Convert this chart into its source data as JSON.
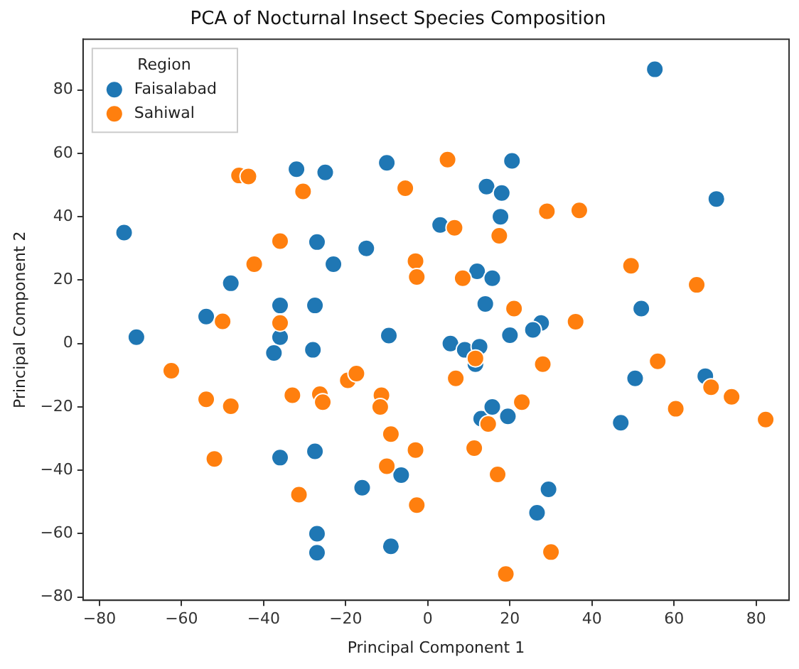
{
  "chart_data": {
    "type": "scatter",
    "title": "PCA of Nocturnal Insect Species Composition",
    "xlabel": "Principal Component 1",
    "ylabel": "Principal Component 2",
    "legend_title": "Region",
    "legend": "top left",
    "grid": false,
    "marker": "circle",
    "xlim": [
      -84,
      88
    ],
    "ylim": [
      -81,
      96
    ],
    "xticks": [
      -80,
      -60,
      -40,
      -20,
      0,
      20,
      40,
      60,
      80
    ],
    "yticks": [
      -80,
      -60,
      -40,
      -20,
      0,
      20,
      40,
      60,
      80
    ],
    "series": [
      {
        "name": "Faisalabad",
        "color": "#1f77b4",
        "x": [
          -74,
          -71,
          -54,
          -48,
          -32,
          -25,
          -27,
          -23,
          -15,
          -36,
          -36,
          -37.5,
          -28,
          -27.5,
          -36,
          -27.5,
          -27,
          -27,
          -16,
          -6.5,
          -9,
          -9.5,
          -10,
          20.5,
          14.3,
          18,
          17.7,
          3,
          12,
          15.7,
          14,
          52,
          70.3,
          55.3,
          27.6,
          25.6,
          20,
          5.5,
          9,
          12.6,
          11.6,
          13,
          15.7,
          19.5,
          47,
          50.5,
          67.6,
          29.4,
          26.6
        ],
        "values": [
          35,
          2,
          8.5,
          19,
          55,
          54,
          32,
          25,
          30,
          12,
          2,
          -3,
          -2,
          12,
          -36,
          -34,
          -60,
          -66,
          -45.5,
          -41.5,
          -64,
          2.5,
          57,
          57.6,
          49.5,
          47.5,
          40,
          37.4,
          22.8,
          20.6,
          12.5,
          11,
          45.6,
          86.5,
          6.5,
          4.3,
          2.6,
          0,
          -2,
          -1,
          -6.5,
          -23.7,
          -20,
          -23,
          -25,
          -11,
          -10.3,
          -46,
          -53.4
        ]
      },
      {
        "name": "Sahiwal",
        "color": "#ff7f0e",
        "x": [
          -46,
          -43.7,
          -30.4,
          -5.5,
          -36,
          -42.3,
          -3,
          -2.7,
          -50,
          -36,
          -62.5,
          -54,
          -48,
          -52,
          -33,
          -26.3,
          -25.6,
          -19.5,
          -17.4,
          -11.3,
          -11.6,
          -9,
          -3,
          -10,
          -31.4,
          -2.7,
          4.8,
          6.5,
          17.4,
          29,
          36.9,
          8.5,
          21,
          49.5,
          65.5,
          36,
          11.6,
          6.8,
          28,
          56,
          69,
          74,
          60.4,
          82.3,
          22.9,
          14.7,
          11.3,
          17,
          30,
          19
        ],
        "values": [
          53,
          52.7,
          48,
          49,
          32.3,
          25,
          26,
          21,
          7,
          6.5,
          -8.6,
          -17.6,
          -19.8,
          -36.4,
          -16.3,
          -16,
          -18.5,
          -11.6,
          -9.5,
          -16.3,
          -20,
          -28.6,
          -33.6,
          -38.7,
          -47.7,
          -51,
          58,
          36.5,
          34,
          41.7,
          42,
          20.6,
          11,
          24.5,
          18.5,
          6.9,
          -4.7,
          -11,
          -6.5,
          -5.6,
          -13.8,
          -16.8,
          -20.6,
          -24,
          -18.5,
          -25.4,
          -33,
          -41.3,
          -65.8,
          -72.7
        ]
      }
    ]
  }
}
